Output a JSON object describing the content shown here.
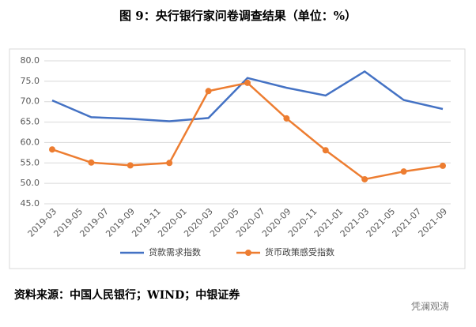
{
  "chart_data": {
    "type": "line",
    "title": "图 9：央行银行家问卷调查结果（单位：%）",
    "source": "资料来源：中国人民银行；WIND；中银证券",
    "watermark": "凭澜观涛",
    "x": [
      "2019-03",
      "2019-06",
      "2019-09",
      "2019-12",
      "2020-03",
      "2020-06",
      "2020-09",
      "2020-12",
      "2021-03",
      "2021-06",
      "2021-09"
    ],
    "xticks": [
      "2019-03",
      "2019-05",
      "2019-07",
      "2019-09",
      "2019-11",
      "2020-01",
      "2020-03",
      "2020-05",
      "2020-07",
      "2020-09",
      "2020-11",
      "2021-01",
      "2021-03",
      "2021-05",
      "2021-07",
      "2021-09"
    ],
    "series": [
      {
        "name": "贷款需求指数",
        "color": "#4472c4",
        "markers": false,
        "values": [
          70.3,
          66.2,
          65.8,
          65.2,
          66.0,
          75.8,
          73.4,
          71.5,
          77.4,
          70.4,
          68.2
        ]
      },
      {
        "name": "货币政策感受指数",
        "color": "#ed7d31",
        "markers": true,
        "values": [
          58.3,
          55.1,
          54.4,
          55.0,
          72.6,
          74.6,
          65.9,
          58.1,
          51.0,
          52.9,
          54.3
        ]
      }
    ],
    "ylim": [
      45,
      80
    ],
    "yticks": [
      {
        "value": 45,
        "label": "45.0"
      },
      {
        "value": 50,
        "label": "50.0"
      },
      {
        "value": 55,
        "label": "55.0"
      },
      {
        "value": 60,
        "label": "60.0"
      },
      {
        "value": 65,
        "label": "65.0"
      },
      {
        "value": 70,
        "label": "70.0"
      },
      {
        "value": 75,
        "label": "75.0"
      },
      {
        "value": 80,
        "label": "80.0"
      }
    ],
    "grid": true,
    "legend": "bottom"
  }
}
